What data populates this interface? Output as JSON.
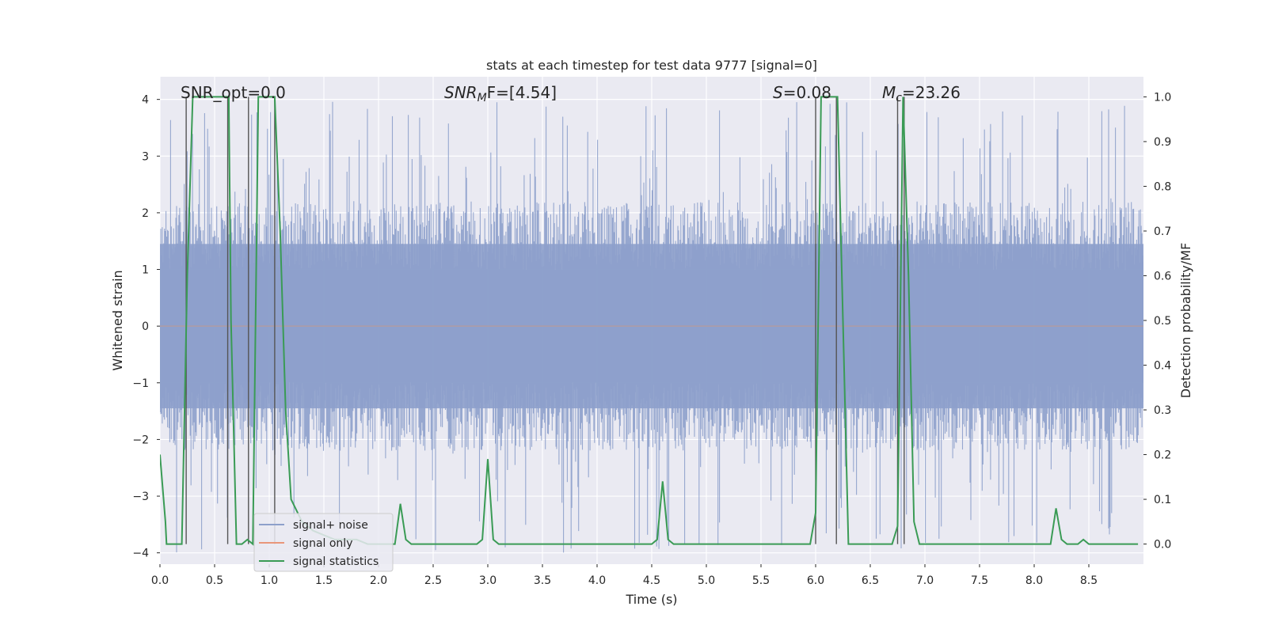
{
  "chart_data": {
    "type": "line",
    "title": "stats at each timestep for test data 9777 [signal=0]",
    "xlabel": "Time (s)",
    "ylabel_left": "Whitened strain",
    "ylabel_right": "Detection probability/MF",
    "xlim": [
      0.0,
      9.0
    ],
    "ylim_left": [
      -4.2,
      4.4
    ],
    "ylim_right": [
      -0.045,
      1.045
    ],
    "x_ticks": [
      "0.0",
      "0.5",
      "1.0",
      "1.5",
      "2.0",
      "2.5",
      "3.0",
      "3.5",
      "4.0",
      "4.5",
      "5.0",
      "5.5",
      "6.0",
      "6.5",
      "7.0",
      "7.5",
      "8.0",
      "8.5"
    ],
    "y_ticks_left": [
      "4",
      "3",
      "2",
      "1",
      "0",
      "−1",
      "−2",
      "−3",
      "−4"
    ],
    "y_ticks_right": [
      "1.0",
      "0.9",
      "0.8",
      "0.7",
      "0.6",
      "0.5",
      "0.4",
      "0.3",
      "0.2",
      "0.1",
      "0.0"
    ],
    "grid": true,
    "annotations": [
      {
        "prefix": "SNR_opt=0.0",
        "main": "",
        "sub": "",
        "rest": ""
      },
      {
        "prefix": "",
        "main": "SNR",
        "sub": "M",
        "rest": "F=[4.54]"
      },
      {
        "prefix": "",
        "main": "S",
        "sub": "",
        "rest": "=0.08"
      },
      {
        "prefix": "",
        "main": "M",
        "sub": "c",
        "rest": "=23.26"
      }
    ],
    "legend": {
      "placement": "lower-left",
      "entries": [
        {
          "label": "signal+ noise",
          "color": "#8da0cb"
        },
        {
          "label": "signal only",
          "color": "#e9967a"
        },
        {
          "label": "signal statistics",
          "color": "#3a9b55"
        }
      ]
    },
    "series": [
      {
        "name": "signal+ noise",
        "kind": "noise",
        "x_range": [
          0.0,
          9.0
        ],
        "envelope_typical": [
          -2.2,
          2.2
        ],
        "peak_range": [
          -4.0,
          4.0
        ],
        "color": "#8da0cb"
      },
      {
        "name": "signal only",
        "kind": "flat",
        "value": 0.0,
        "color": "#e9967a"
      },
      {
        "name": "signal statistics",
        "axis": "right",
        "color": "#3a9b55",
        "x": [
          0.0,
          0.05,
          0.06,
          0.1,
          0.15,
          0.2,
          0.25,
          0.3,
          0.35,
          0.4,
          0.45,
          0.5,
          0.55,
          0.6,
          0.63,
          0.65,
          0.7,
          0.75,
          0.8,
          0.85,
          0.9,
          0.95,
          1.0,
          1.05,
          1.1,
          1.15,
          1.2,
          1.3,
          1.4,
          1.5,
          1.6,
          1.7,
          1.8,
          1.9,
          2.0,
          2.05,
          2.1,
          2.15,
          2.2,
          2.25,
          2.3,
          2.35,
          2.4,
          2.5,
          2.6,
          2.7,
          2.8,
          2.9,
          2.95,
          3.0,
          3.05,
          3.1,
          3.15,
          3.2,
          3.3,
          3.5,
          4.0,
          4.5,
          4.55,
          4.6,
          4.65,
          4.7,
          4.8,
          5.0,
          5.5,
          5.9,
          5.95,
          6.0,
          6.05,
          6.1,
          6.15,
          6.2,
          6.25,
          6.3,
          6.5,
          6.7,
          6.75,
          6.8,
          6.85,
          6.9,
          6.95,
          7.0,
          7.5,
          8.0,
          8.1,
          8.15,
          8.2,
          8.25,
          8.3,
          8.35,
          8.4,
          8.45,
          8.5,
          8.55,
          8.6,
          8.7,
          8.8,
          8.9,
          8.95
        ],
        "y": [
          0.2,
          0.05,
          0.0,
          0.0,
          0.0,
          0.0,
          0.6,
          1.0,
          1.0,
          1.0,
          1.0,
          1.0,
          1.0,
          1.0,
          1.0,
          0.5,
          0.0,
          0.0,
          0.01,
          0.0,
          1.0,
          1.0,
          1.0,
          1.0,
          0.7,
          0.3,
          0.1,
          0.05,
          0.03,
          0.02,
          0.01,
          0.01,
          0.01,
          0.0,
          0.0,
          0.0,
          0.0,
          0.0,
          0.09,
          0.01,
          0.0,
          0.0,
          0.0,
          0.0,
          0.0,
          0.0,
          0.0,
          0.0,
          0.01,
          0.19,
          0.01,
          0.0,
          0.0,
          0.0,
          0.0,
          0.0,
          0.0,
          0.0,
          0.01,
          0.14,
          0.01,
          0.0,
          0.0,
          0.0,
          0.0,
          0.0,
          0.0,
          0.07,
          1.0,
          1.0,
          1.0,
          1.0,
          0.5,
          0.0,
          0.0,
          0.0,
          0.04,
          1.0,
          0.6,
          0.05,
          0.0,
          0.0,
          0.0,
          0.0,
          0.0,
          0.0,
          0.08,
          0.01,
          0.0,
          0.0,
          0.0,
          0.01,
          0.0,
          0.0,
          0.0,
          0.0,
          0.0,
          0.0,
          0.0
        ]
      }
    ],
    "vertical_markers": {
      "color": "#555555",
      "x": [
        0.24,
        0.62,
        0.81,
        1.05,
        6.0,
        6.19,
        6.75,
        6.81
      ]
    }
  }
}
